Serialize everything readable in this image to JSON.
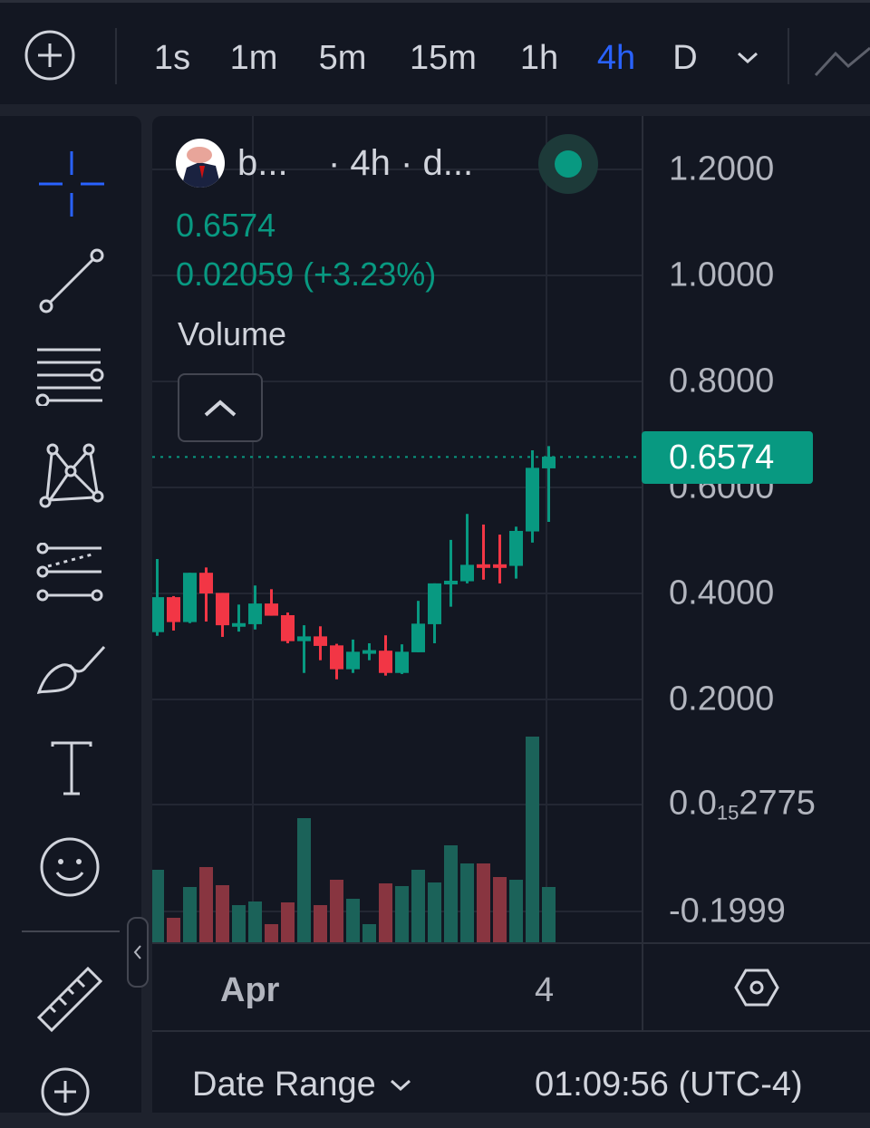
{
  "topbar": {
    "add_icon": "plus-circle-icon",
    "intervals": [
      {
        "label": "1s"
      },
      {
        "label": "1m"
      },
      {
        "label": "5m"
      },
      {
        "label": "15m"
      },
      {
        "label": "1h"
      },
      {
        "label": "4h",
        "active": true
      },
      {
        "label": "D"
      }
    ],
    "more_icon": "chevron-down-icon",
    "chart_type_icon": "line-chart-icon"
  },
  "toolbar": {
    "tools": [
      "crosshair-icon",
      "trend-line-icon",
      "horizontal-lines-icon",
      "pattern-icon",
      "fib-retracement-icon",
      "brush-icon",
      "text-icon",
      "emoji-icon",
      "ruler-icon",
      "zoom-plus-icon"
    ],
    "collapse_icon": "chevron-left-icon"
  },
  "legend": {
    "symbol": "b...",
    "interval_exchange": "· 4h · d...",
    "price": "0.6574",
    "change": "0.02059 (+3.23%)",
    "volume_label": "Volume",
    "collapse_icon": "chevron-up-icon",
    "status": "live"
  },
  "price_axis": {
    "labels": [
      "1.2000",
      "1.0000",
      "0.8000",
      "0.6000",
      "0.4000",
      "0.2000"
    ],
    "volume_labels": {
      "top_prefix": "0.0",
      "top_sub": "15",
      "top_suffix": "2775",
      "bottom": "-0.1999"
    },
    "last_price": "0.6574"
  },
  "time_axis": {
    "labels": [
      "Apr",
      "4"
    ],
    "settings_icon": "hexagon-settings-icon"
  },
  "footer": {
    "date_range": "Date Range",
    "time": "01:09:56 (UTC-4)"
  },
  "colors": {
    "up": "#089981",
    "down": "#f23645",
    "up_volume": "#1b6259",
    "down_volume": "#883540",
    "accent": "#2962ff",
    "background": "#131722"
  },
  "chart_data": {
    "type": "candlestick",
    "interval": "4h",
    "ylim": [
      0.2,
      1.2
    ],
    "grid": true,
    "last_price": 0.6574,
    "candles": [
      {
        "o": 0.327,
        "h": 0.465,
        "l": 0.32,
        "c": 0.393
      },
      {
        "o": 0.393,
        "h": 0.395,
        "l": 0.33,
        "c": 0.346
      },
      {
        "o": 0.346,
        "h": 0.439,
        "l": 0.344,
        "c": 0.439
      },
      {
        "o": 0.439,
        "h": 0.449,
        "l": 0.347,
        "c": 0.4
      },
      {
        "o": 0.401,
        "h": 0.401,
        "l": 0.318,
        "c": 0.34
      },
      {
        "o": 0.341,
        "h": 0.379,
        "l": 0.328,
        "c": 0.344
      },
      {
        "o": 0.342,
        "h": 0.415,
        "l": 0.332,
        "c": 0.381
      },
      {
        "o": 0.381,
        "h": 0.408,
        "l": 0.358,
        "c": 0.358
      },
      {
        "o": 0.359,
        "h": 0.364,
        "l": 0.306,
        "c": 0.31
      },
      {
        "o": 0.31,
        "h": 0.34,
        "l": 0.25,
        "c": 0.319
      },
      {
        "o": 0.319,
        "h": 0.338,
        "l": 0.274,
        "c": 0.301
      },
      {
        "o": 0.302,
        "h": 0.305,
        "l": 0.238,
        "c": 0.257
      },
      {
        "o": 0.257,
        "h": 0.313,
        "l": 0.25,
        "c": 0.29
      },
      {
        "o": 0.29,
        "h": 0.306,
        "l": 0.274,
        "c": 0.293
      },
      {
        "o": 0.292,
        "h": 0.321,
        "l": 0.245,
        "c": 0.25
      },
      {
        "o": 0.25,
        "h": 0.304,
        "l": 0.248,
        "c": 0.29
      },
      {
        "o": 0.289,
        "h": 0.386,
        "l": 0.289,
        "c": 0.343
      },
      {
        "o": 0.342,
        "h": 0.419,
        "l": 0.306,
        "c": 0.419
      },
      {
        "o": 0.417,
        "h": 0.501,
        "l": 0.375,
        "c": 0.424
      },
      {
        "o": 0.423,
        "h": 0.55,
        "l": 0.419,
        "c": 0.454
      },
      {
        "o": 0.455,
        "h": 0.53,
        "l": 0.426,
        "c": 0.452
      },
      {
        "o": 0.455,
        "h": 0.511,
        "l": 0.419,
        "c": 0.452
      },
      {
        "o": 0.452,
        "h": 0.526,
        "l": 0.428,
        "c": 0.518
      },
      {
        "o": 0.517,
        "h": 0.67,
        "l": 0.496,
        "c": 0.637
      },
      {
        "o": 0.636,
        "h": 0.678,
        "l": 0.535,
        "c": 0.658
      }
    ],
    "volume": [
      80,
      27,
      61,
      83,
      63,
      41,
      45,
      20,
      44,
      137,
      41,
      69,
      48,
      20,
      65,
      62,
      80,
      66,
      107,
      87,
      87,
      72,
      69,
      227,
      61
    ]
  }
}
